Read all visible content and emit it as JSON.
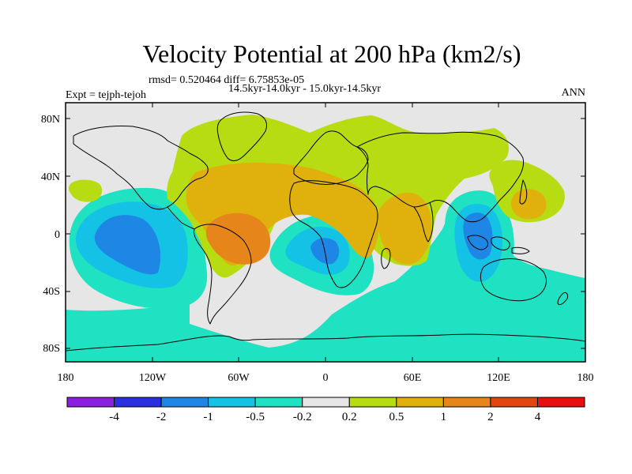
{
  "title": "Velocity Potential at 200 hPa (km2/s)",
  "subtitle_left_top": "rmsd= 0.520464 diff= 6.75853e-05",
  "subtitle_center": "14.5kyr-14.0kyr - 15.0kyr-14.5kyr",
  "subtitle_left": "Expt = tejph-tejoh",
  "subtitle_right": "ANN",
  "map": {
    "lat_ticks": [
      "80N",
      "40N",
      "0",
      "40S",
      "80S"
    ],
    "lon_ticks": [
      "180",
      "120W",
      "60W",
      "0",
      "60E",
      "120E",
      "180"
    ]
  },
  "colorbar": {
    "labels": [
      "-4",
      "-2",
      "-1",
      "-0.5",
      "-0.2",
      "0.2",
      "0.5",
      "1",
      "2",
      "4"
    ],
    "colors": [
      "#8a1fe0",
      "#2a2fe0",
      "#1e87e6",
      "#14c2e6",
      "#1ee2c2",
      "#e6e6e6",
      "#b7dc12",
      "#e0b00c",
      "#e6861a",
      "#e0460e",
      "#e61010"
    ]
  },
  "fields": {
    "background": "#e6e6e6",
    "anomalies": [
      {
        "region": "South America / tropical Atlantic",
        "sign": "positive",
        "peak": 1.2
      },
      {
        "region": "North Atlantic / Europe",
        "sign": "positive",
        "peak": 0.6
      },
      {
        "region": "East Africa / Arabian Sea",
        "sign": "positive",
        "peak": 0.8
      },
      {
        "region": "North Pacific off Japan",
        "sign": "positive",
        "peak": 0.6
      },
      {
        "region": "Eastern tropical Pacific",
        "sign": "negative",
        "peak": -1.2
      },
      {
        "region": "South Atlantic off Africa",
        "sign": "negative",
        "peak": -1.1
      },
      {
        "region": "Maritime Continent",
        "sign": "negative",
        "peak": -1.2
      },
      {
        "region": "Southern Ocean",
        "sign": "negative",
        "peak": -0.3
      }
    ]
  }
}
